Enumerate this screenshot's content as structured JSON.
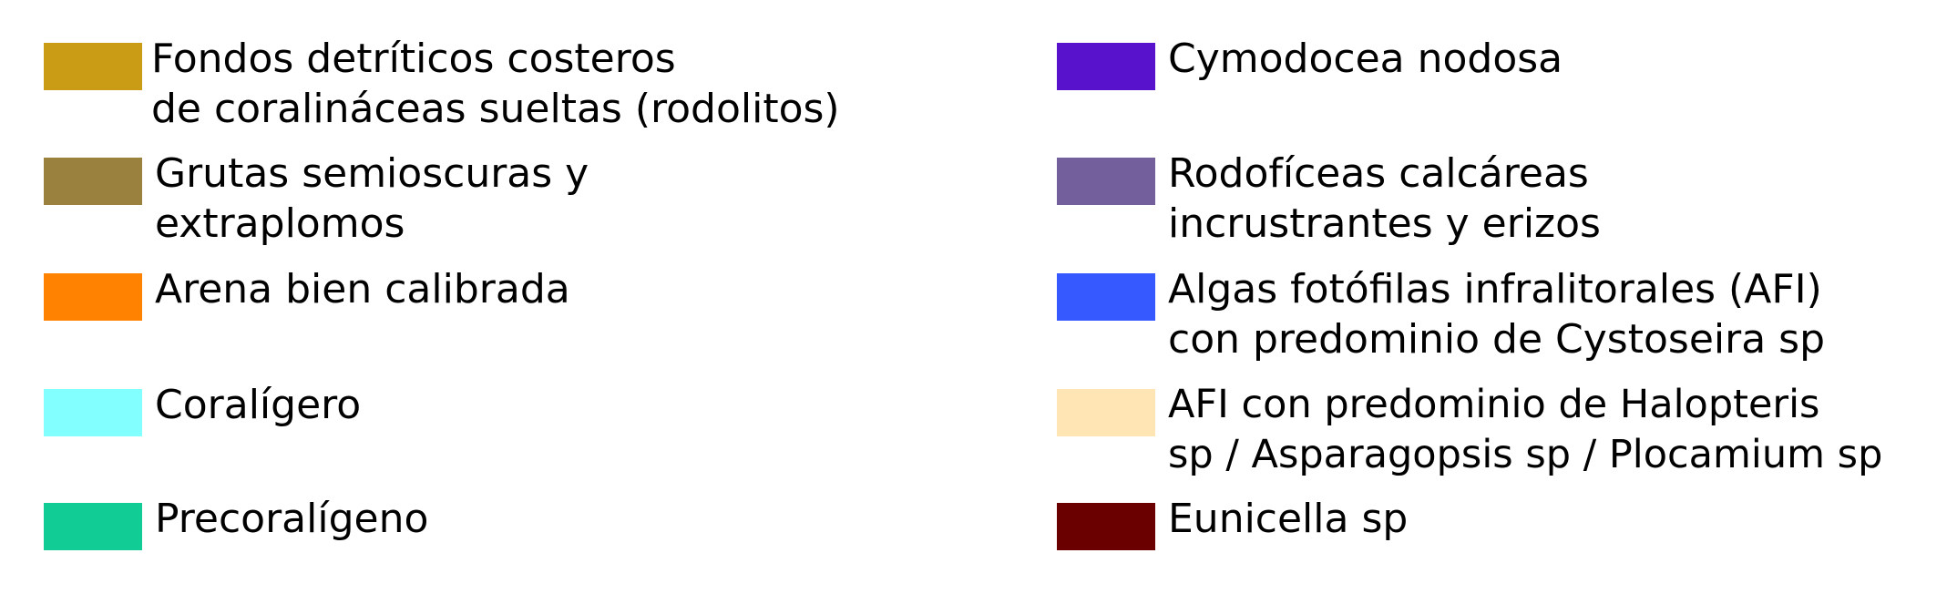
{
  "legend": {
    "items": [
      {
        "color": "#CA9C16",
        "lines": [
          "Fondos detríticos costeros",
          "de coralináceas sueltas (rodolitos)"
        ]
      },
      {
        "color": "#9A823E",
        "lines": [
          "Grutas semioscuras y",
          "extraplomos"
        ]
      },
      {
        "color": "#FF8300",
        "lines": [
          "Arena bien calibrada",
          ""
        ]
      },
      {
        "color": "#82FFFF",
        "lines": [
          "Coralígero",
          ""
        ]
      },
      {
        "color": "#12CC95",
        "lines": [
          "Precoralígeno",
          ""
        ]
      },
      {
        "color": "#5812CC",
        "lines": [
          "Cymodocea nodosa",
          ""
        ]
      },
      {
        "color": "#735F9B",
        "lines": [
          "Rodofíceas calcáreas",
          "incrustrantes y erizos"
        ]
      },
      {
        "color": "#3558FF",
        "lines": [
          "Algas fotófilas infralitorales (AFI)",
          "con predominio de Cystoseira sp"
        ]
      },
      {
        "color": "#FFE4B4",
        "lines": [
          "AFI con predominio de Halopteris",
          "sp / Asparagopsis sp / Plocamium sp"
        ]
      },
      {
        "color": "#6A0000",
        "lines": [
          "Eunicella sp",
          ""
        ]
      }
    ]
  }
}
